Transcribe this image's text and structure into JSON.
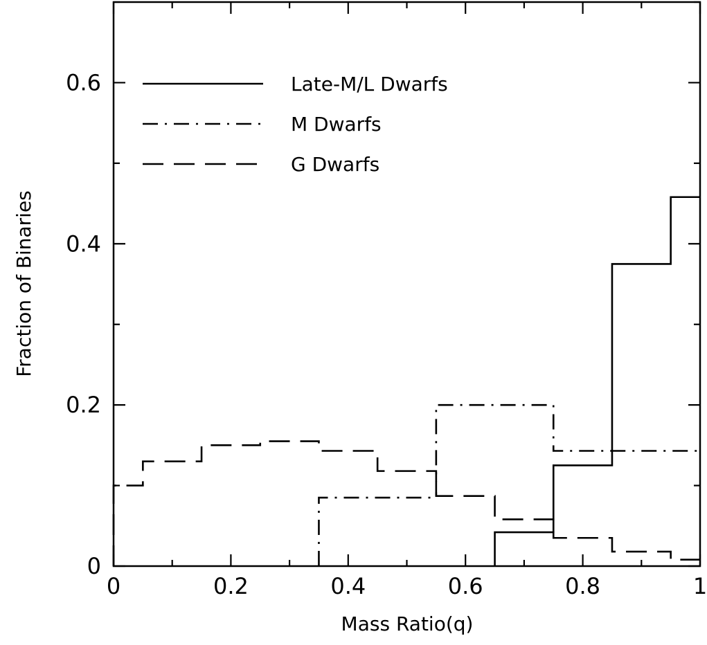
{
  "chart_data": {
    "type": "step",
    "title": "",
    "xlabel": "Mass Ratio(q)",
    "ylabel": "Fraction of Binaries",
    "xlim": [
      0,
      1
    ],
    "ylim": [
      0,
      0.7
    ],
    "xticks": [
      {
        "value": 0,
        "label": "0"
      },
      {
        "value": 0.2,
        "label": "0.2"
      },
      {
        "value": 0.4,
        "label": "0.4"
      },
      {
        "value": 0.6,
        "label": "0.6"
      },
      {
        "value": 0.8,
        "label": "0.8"
      },
      {
        "value": 1,
        "label": "1"
      }
    ],
    "yticks": [
      {
        "value": 0,
        "label": "0"
      },
      {
        "value": 0.2,
        "label": "0.2"
      },
      {
        "value": 0.4,
        "label": "0.4"
      },
      {
        "value": 0.6,
        "label": "0.6"
      }
    ],
    "x_minor_tick_step": 0.1,
    "y_minor_tick_step": 0.1,
    "grid": false,
    "legend_position": "top-left",
    "series": [
      {
        "name": "Late-M/L Dwarfs",
        "line_style": "solid",
        "color": "#000000",
        "bins": [
          {
            "x0": 0.65,
            "x1": 0.75,
            "y": 0.042
          },
          {
            "x0": 0.75,
            "x1": 0.85,
            "y": 0.125
          },
          {
            "x0": 0.85,
            "x1": 0.95,
            "y": 0.375
          },
          {
            "x0": 0.95,
            "x1": 1.0,
            "y": 0.458
          }
        ]
      },
      {
        "name": "M Dwarfs",
        "line_style": "dash-dot",
        "color": "#000000",
        "bins": [
          {
            "x0": 0.35,
            "x1": 0.55,
            "y": 0.085
          },
          {
            "x0": 0.55,
            "x1": 0.75,
            "y": 0.2
          },
          {
            "x0": 0.75,
            "x1": 1.0,
            "y": 0.143
          }
        ]
      },
      {
        "name": "G Dwarfs",
        "line_style": "dashed",
        "color": "#000000",
        "bins": [
          {
            "x0": 0.0,
            "x1": 0.05,
            "y": 0.1
          },
          {
            "x0": 0.05,
            "x1": 0.15,
            "y": 0.13
          },
          {
            "x0": 0.15,
            "x1": 0.25,
            "y": 0.15
          },
          {
            "x0": 0.25,
            "x1": 0.35,
            "y": 0.155
          },
          {
            "x0": 0.35,
            "x1": 0.45,
            "y": 0.143
          },
          {
            "x0": 0.45,
            "x1": 0.55,
            "y": 0.118
          },
          {
            "x0": 0.55,
            "x1": 0.65,
            "y": 0.087
          },
          {
            "x0": 0.65,
            "x1": 0.75,
            "y": 0.058
          },
          {
            "x0": 0.75,
            "x1": 0.85,
            "y": 0.035
          },
          {
            "x0": 0.85,
            "x1": 0.95,
            "y": 0.018
          },
          {
            "x0": 0.95,
            "x1": 1.0,
            "y": 0.008
          }
        ]
      }
    ]
  }
}
